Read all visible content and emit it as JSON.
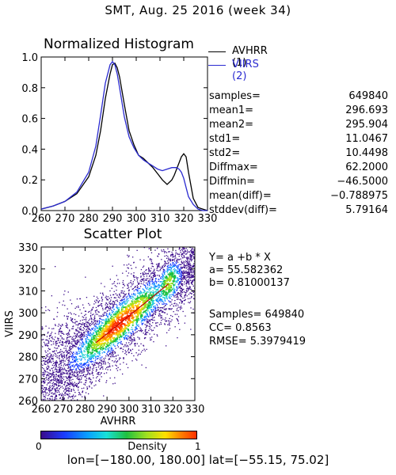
{
  "page_title": "SMT,  Aug. 25 2016 (week 34)",
  "footer": "lon=[−180.00, 180.00] lat=[−55.15, 75.02]",
  "colors": {
    "avhrr": "#000000",
    "viirs": "#2a2ad0",
    "fit_line": "#c00000"
  },
  "legend": [
    {
      "label": "AVHRR (1)",
      "color": "#000000"
    },
    {
      "label": "VIIRS (2)",
      "color": "#2a2ad0"
    }
  ],
  "stats": [
    {
      "key": "samples=",
      "value": "649840"
    },
    {
      "key": "mean1=",
      "value": "296.693"
    },
    {
      "key": "mean2=",
      "value": "295.904"
    },
    {
      "key": "std1=",
      "value": "11.0467"
    },
    {
      "key": "std2=",
      "value": "10.4498"
    },
    {
      "key": "Diffmax=",
      "value": "62.2000"
    },
    {
      "key": "Diffmin=",
      "value": "−46.5000"
    },
    {
      "key": "mean(diff)=",
      "value": "−0.788975"
    },
    {
      "key": "stddev(diff)=",
      "value": "5.79164"
    }
  ],
  "regression": {
    "equation": "Y= a +b * X",
    "a": "a= 55.582362",
    "b": "b= 0.81000137",
    "samples": "Samples= 649840",
    "cc": "CC=  0.8563",
    "rmse": "RMSE= 5.3979419"
  },
  "colorbar": {
    "label": "Density",
    "min": "0",
    "max": "1"
  },
  "chart_data": [
    {
      "type": "line",
      "title": "Normalized Histogram",
      "xlabel": "",
      "ylabel": "",
      "xlim": [
        260,
        330
      ],
      "ylim": [
        0.0,
        1.0
      ],
      "x_ticks": [
        "260",
        "270",
        "280",
        "290",
        "300",
        "310",
        "320",
        "330"
      ],
      "y_ticks": [
        "0.0",
        "0.2",
        "0.4",
        "0.6",
        "0.8",
        "1.0"
      ],
      "x": [
        260,
        265,
        270,
        275,
        280,
        283,
        285,
        287,
        289,
        290,
        291,
        292,
        293,
        295,
        297,
        299,
        301,
        303,
        305,
        307,
        309,
        311,
        313,
        315,
        316,
        317,
        318,
        319,
        320,
        321,
        322,
        324,
        326,
        328,
        330
      ],
      "series": [
        {
          "name": "AVHRR (1)",
          "color": "#000000",
          "values": [
            0.01,
            0.03,
            0.06,
            0.11,
            0.22,
            0.36,
            0.52,
            0.73,
            0.89,
            0.95,
            0.96,
            0.93,
            0.87,
            0.69,
            0.52,
            0.43,
            0.36,
            0.34,
            0.31,
            0.28,
            0.24,
            0.2,
            0.17,
            0.2,
            0.23,
            0.27,
            0.31,
            0.35,
            0.37,
            0.35,
            0.25,
            0.08,
            0.02,
            0.01,
            0.0
          ]
        },
        {
          "name": "VIIRS (2)",
          "color": "#2a2ad0",
          "values": [
            0.01,
            0.03,
            0.06,
            0.12,
            0.25,
            0.42,
            0.62,
            0.83,
            0.95,
            0.97,
            0.95,
            0.89,
            0.8,
            0.61,
            0.48,
            0.41,
            0.36,
            0.33,
            0.31,
            0.29,
            0.27,
            0.26,
            0.27,
            0.28,
            0.28,
            0.28,
            0.27,
            0.25,
            0.21,
            0.15,
            0.09,
            0.04,
            0.01,
            0.0,
            0.0
          ]
        }
      ]
    },
    {
      "type": "scatter",
      "title": "Scatter Plot",
      "xlabel": "AVHRR",
      "ylabel": "VIIRS",
      "xlim": [
        260,
        330
      ],
      "ylim": [
        260,
        330
      ],
      "x_ticks": [
        "260",
        "270",
        "280",
        "290",
        "300",
        "310",
        "320",
        "330"
      ],
      "y_ticks": [
        "260",
        "270",
        "280",
        "290",
        "300",
        "310",
        "320",
        "330"
      ],
      "fit_line": {
        "a": 55.582362,
        "b": 0.81000137,
        "x_range": [
          285,
          318
        ]
      }
    }
  ]
}
